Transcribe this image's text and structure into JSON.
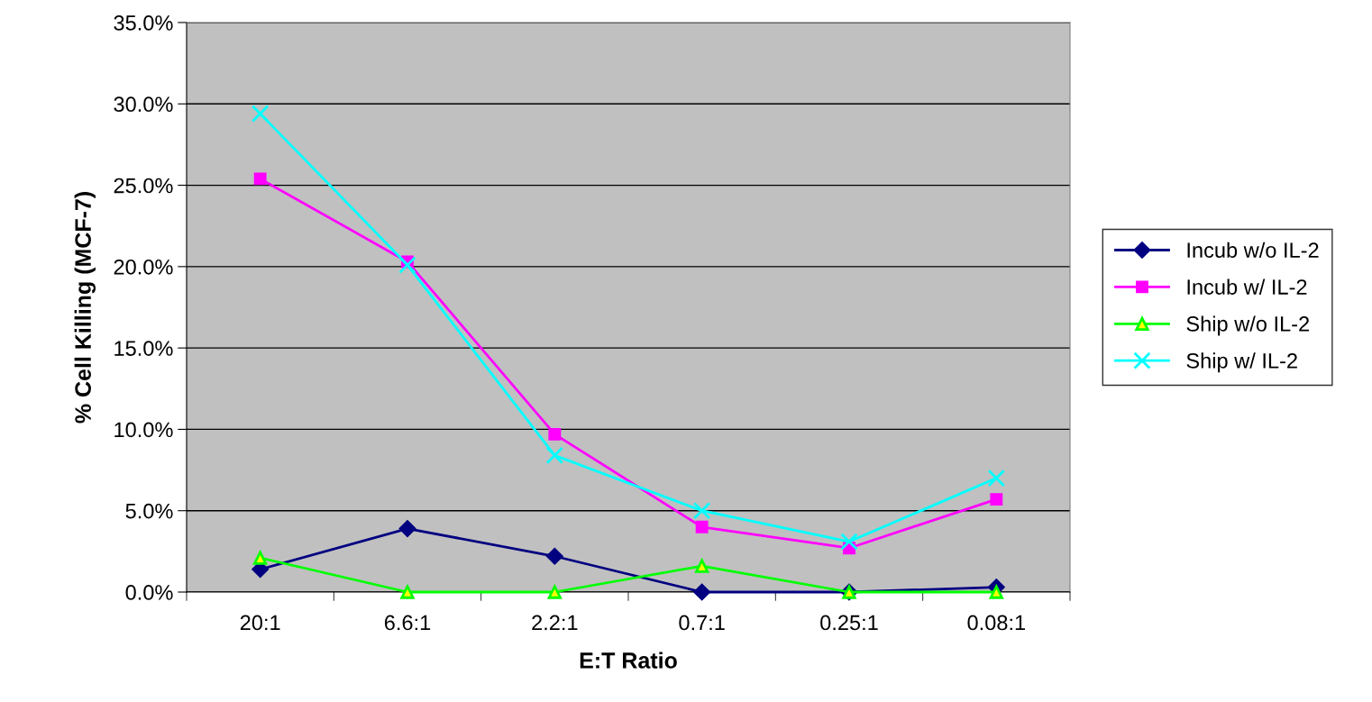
{
  "chart_data": {
    "type": "line",
    "xlabel": "E:T Ratio",
    "ylabel": "% Cell Killing (MCF-7)",
    "categories": [
      "20:1",
      "6.6:1",
      "2.2:1",
      "0.7:1",
      "0.25:1",
      "0.08:1"
    ],
    "series": [
      {
        "name": "Incub w/o IL-2",
        "color": "#000080",
        "marker": "diamond",
        "values": [
          1.4,
          3.9,
          2.2,
          0,
          0,
          0.3
        ]
      },
      {
        "name": "Incub w/ IL-2",
        "color": "#ff00ff",
        "marker": "square",
        "values": [
          25.4,
          20.3,
          9.7,
          4.0,
          2.7,
          5.7
        ]
      },
      {
        "name": "Ship w/o IL-2",
        "color": "#00ff00",
        "marker": "triangle",
        "values": [
          2.1,
          0,
          0,
          1.6,
          0,
          0
        ]
      },
      {
        "name": "Ship w/ IL-2",
        "color": "#00ffff",
        "marker": "cross",
        "values": [
          29.4,
          20.1,
          8.4,
          5.0,
          3.1,
          7.0
        ]
      }
    ],
    "ylim": [
      0,
      35
    ],
    "yticks": [
      {
        "value": 0,
        "label": "0.0%"
      },
      {
        "value": 5,
        "label": "5.0%"
      },
      {
        "value": 10,
        "label": "10.0%"
      },
      {
        "value": 15,
        "label": "15.0%"
      },
      {
        "value": 20,
        "label": "20.0%"
      },
      {
        "value": 25,
        "label": "25.0%"
      },
      {
        "value": 30,
        "label": "30.0%"
      },
      {
        "value": 35,
        "label": "35.0%"
      }
    ],
    "grid": "y",
    "legend": "right"
  }
}
